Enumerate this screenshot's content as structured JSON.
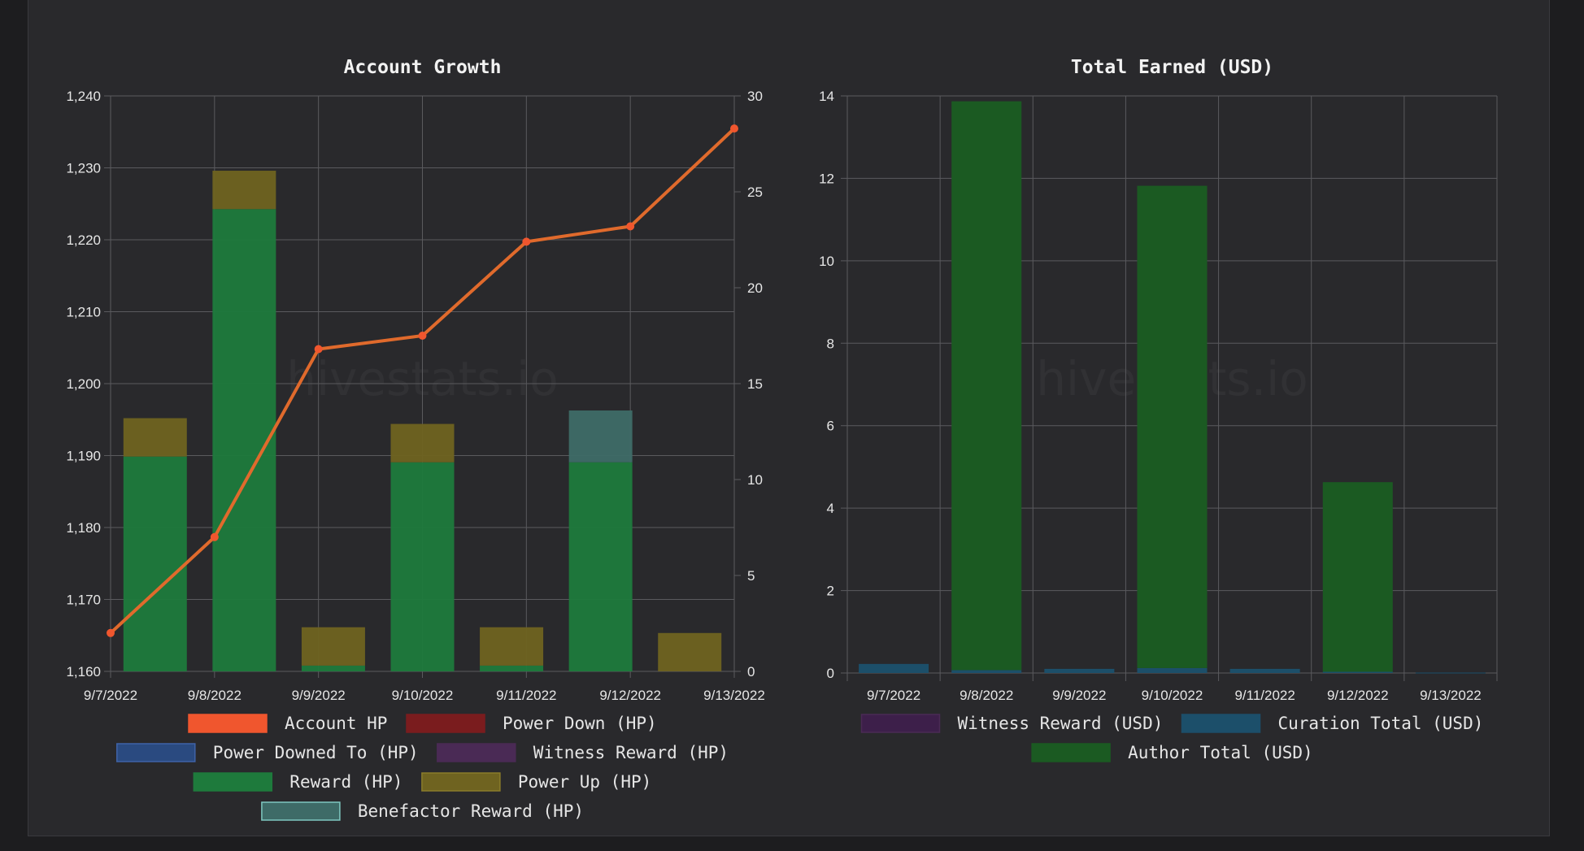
{
  "chart_data": [
    {
      "type": "bar",
      "title": "Account Growth",
      "watermark": "hivestats.io",
      "categories": [
        "9/7/2022",
        "9/8/2022",
        "9/9/2022",
        "9/10/2022",
        "9/11/2022",
        "9/12/2022",
        "9/13/2022"
      ],
      "y_left": {
        "min": 1160,
        "max": 1240,
        "ticks": [
          "1,160",
          "1,170",
          "1,180",
          "1,190",
          "1,200",
          "1,210",
          "1,220",
          "1,230",
          "1,240"
        ]
      },
      "y_right": {
        "min": 0,
        "max": 30,
        "ticks": [
          "0",
          "5",
          "10",
          "15",
          "20",
          "25",
          "30"
        ]
      },
      "stacked": true,
      "bar_series": [
        {
          "name": "Reward (HP)",
          "color": "#1e7a3c",
          "values": [
            11.2,
            24.1,
            0.3,
            10.9,
            0.3,
            10.9,
            0
          ]
        },
        {
          "name": "Power Up (HP)",
          "color": "#6f6320",
          "values": [
            2,
            2,
            2,
            2,
            2,
            0,
            2
          ]
        },
        {
          "name": "Benefactor Reward (HP)",
          "color": "#3e6b67",
          "values": [
            0,
            0,
            0,
            0,
            0,
            2.7,
            0
          ]
        }
      ],
      "line_series": {
        "name": "Account HP",
        "color": "#e06a2c",
        "axis": "right",
        "values": [
          2,
          7,
          16.8,
          17.5,
          22.4,
          23.2,
          28.3
        ]
      },
      "legend": [
        {
          "label": "Account HP",
          "color": "#f0562e",
          "border": "#f0562e"
        },
        {
          "label": "Power Down (HP)",
          "color": "#7a1c1e",
          "border": "#7a1c1e"
        },
        {
          "label": "Power Downed To (HP)",
          "color": "#2a4a80",
          "border": "#3f63a8"
        },
        {
          "label": "Witness Reward (HP)",
          "color": "#4a2a55",
          "border": "#4a2a55"
        },
        {
          "label": "Reward (HP)",
          "color": "#1e7a3c",
          "border": "#1e7a3c"
        },
        {
          "label": "Power Up (HP)",
          "color": "#6f6320",
          "border": "#8a7c2a"
        },
        {
          "label": "Benefactor Reward (HP)",
          "color": "#3e6b67",
          "border": "#7ec8c0"
        }
      ]
    },
    {
      "type": "bar",
      "title": "Total Earned (USD)",
      "watermark": "hivestats.io",
      "categories": [
        "9/7/2022",
        "9/8/2022",
        "9/9/2022",
        "9/10/2022",
        "9/11/2022",
        "9/12/2022",
        "9/13/2022"
      ],
      "y": {
        "min": 0,
        "max": 14,
        "ticks": [
          "0",
          "2",
          "4",
          "6",
          "8",
          "10",
          "12",
          "14"
        ]
      },
      "stacked": true,
      "bar_series": [
        {
          "name": "Curation Total (USD)",
          "color": "#1c4f6a",
          "values": [
            0.22,
            0.07,
            0.1,
            0.12,
            0.1,
            0.03,
            0.01
          ]
        },
        {
          "name": "Author Total (USD)",
          "color": "#1b5a22",
          "values": [
            0,
            13.8,
            0,
            11.7,
            0,
            4.6,
            0
          ]
        }
      ],
      "legend": [
        {
          "label": "Witness Reward (USD)",
          "color": "#3d1f4a",
          "border": "#4a2a55"
        },
        {
          "label": "Curation Total (USD)",
          "color": "#1c4f6a",
          "border": "#1c4f6a"
        },
        {
          "label": "Author Total (USD)",
          "color": "#1b5a22",
          "border": "#1b5a22"
        }
      ]
    }
  ]
}
